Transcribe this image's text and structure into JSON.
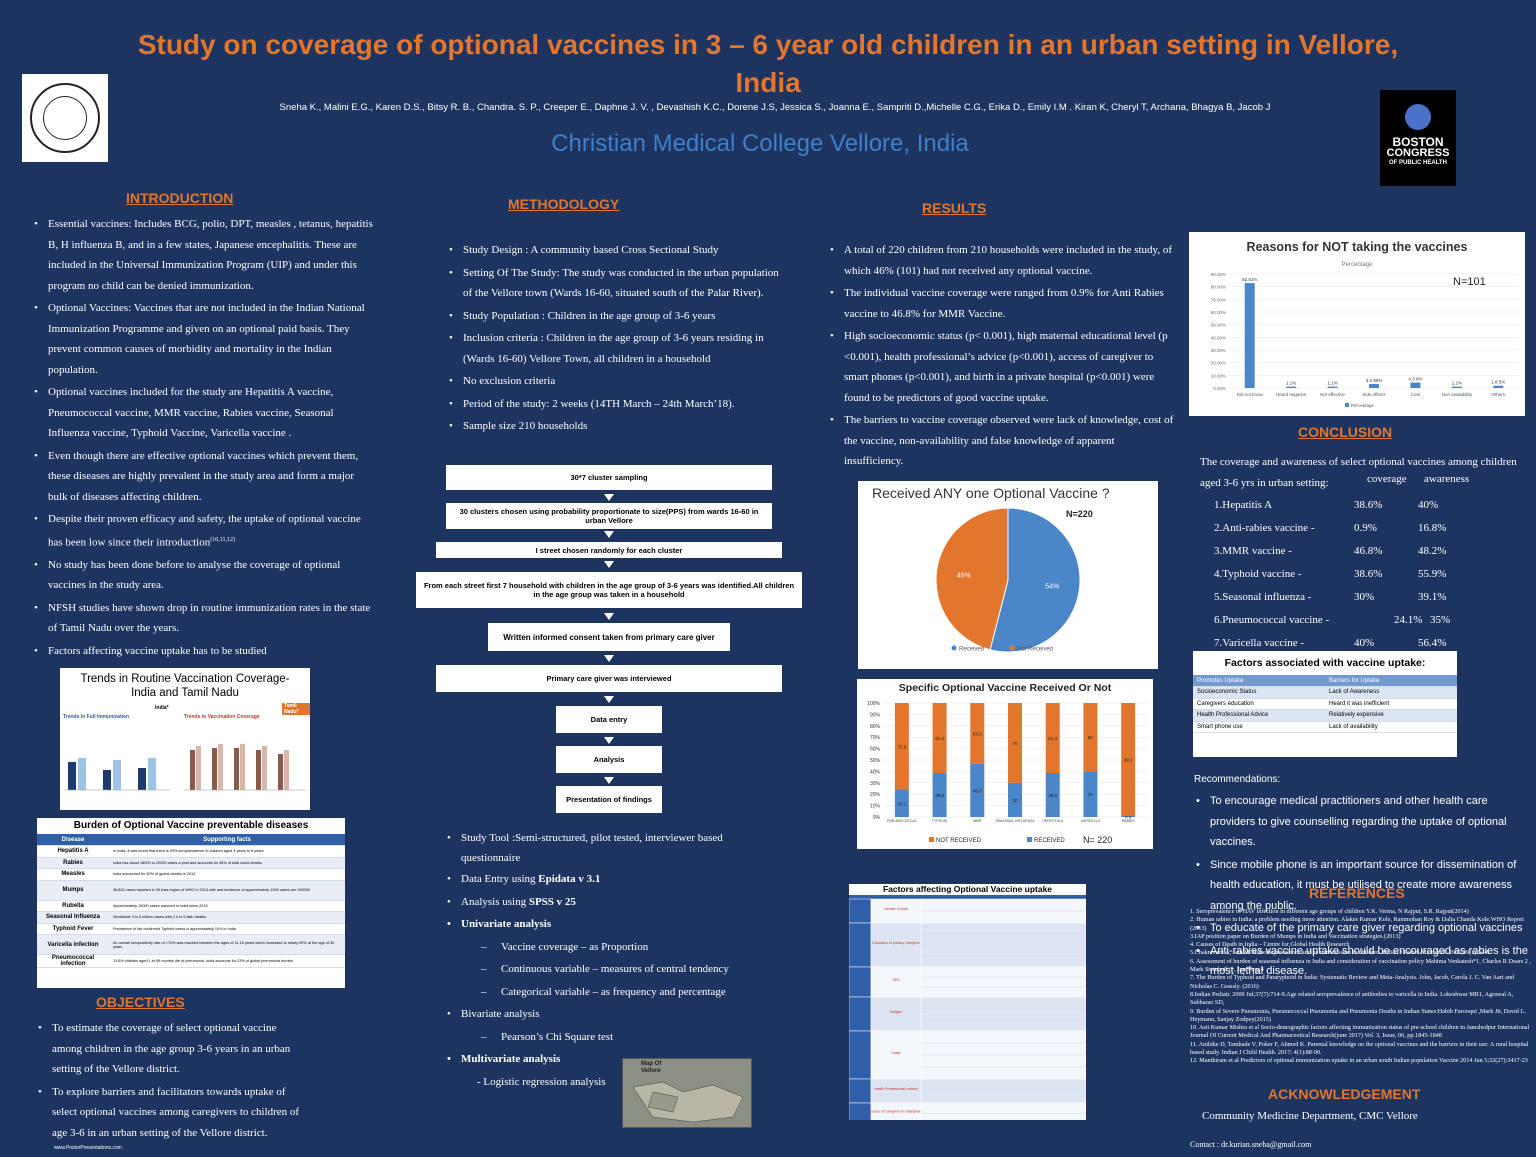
{
  "header": {
    "title_line1": "Study on coverage of optional vaccines in   3 – 6  year old children in an urban setting in   Vellore,",
    "title_line2": "India",
    "authors": "Sneha K., Malini E.G., Karen D.S., Bitsy R. B., Chandra. S. P., Creeper E., Daphne J. V. , Devashish K.C., Dorene J.S, Jessica S., Joanna E., Sampriti D.,Michelle C.G., Erika D.,  Emily I.M . Kiran K, Cheryl T, Archana, Bhagya B, Jacob J",
    "institution": "Christian Medical College Vellore, India",
    "right_logo": {
      "line1": "BOSTON",
      "line2": "CONGRESS",
      "line3": "OF PUBLIC HEALTH"
    }
  },
  "introduction": {
    "heading": "INTRODUCTION",
    "bullets": [
      "Essential  vaccines: Includes BCG, polio, DPT, measles , tetanus, hepatitis B,  H influenza B, and in a few states, Japanese encephalitis. These are included in the Universal Immunization Program (UIP) and under this program no child can be denied immunization.",
      "Optional Vaccines: Vaccines that are not included in the Indian National Immunization Programme and given on an optional paid basis. They prevent common causes of morbidity and mortality in the Indian population.",
      "Optional vaccines included for the study are Hepatitis A vaccine, Pneumococcal vaccine, MMR vaccine, Rabies vaccine,  Seasonal Influenza vaccine, Typhoid Vaccine, Varicella vaccine .",
      "Even though there are effective optional vaccines which prevent them, these diseases are highly prevalent in the study area and form a major bulk of diseases affecting children.",
      "Despite their proven efficacy and safety, the uptake of optional vaccine has been low since their introduction",
      "No study has been done before to analyse the coverage of optional vaccines in the study area.",
      "NFSH studies have shown drop in routine immunization rates in the state of Tamil Nadu over the years.",
      "Factors affecting vaccine uptake has to be studied"
    ],
    "citation": "(10,11,12)"
  },
  "trends_chart": {
    "title_line1": "Trends in Routine Vaccination Coverage-",
    "title_line2": "India and Tamil Nadu",
    "left_tag": "India*",
    "right_tag": "Tamil Nadu*",
    "left_sub": "Trends in Full Immunization",
    "right_sub": "Trends in Vaccination Coverage"
  },
  "burden_table": {
    "title": "Burden of Optional Vaccine preventable diseases",
    "head": [
      "Disease",
      "Supporting facts"
    ],
    "rows": [
      [
        "Hepatitis A",
        "In India, it was found that there is 93% seroprevalence in children aged 4 years to 8 years"
      ],
      [
        "Rabies",
        "India has about 18000 to 20000 cases a year and accounts for 36% of total world deaths"
      ],
      [
        "Measles",
        "India accounted for 50% of global deaths in 2013"
      ],
      [
        "Mumps",
        "36,832 cases reported in 30 Asia region of WHO in 2013 with and incidence of approximately 1000 cases per 100000"
      ],
      [
        "Rubella",
        "Approximately 19000 cases reported in India since 2013"
      ],
      [
        "Seasonal Influenza",
        "Worldwide 3 to 5 million cases with 2.5 to 5 lakh deaths"
      ],
      [
        "Typhoid Fever",
        "Prevalence of lab confirmed Typhoid cases is approximately 10% in India"
      ],
      [
        "Varicella infection",
        "An overall seropositivity rate of >70% was reached between the ages of 11-15 years which increased to nearly 90% at the age of 30 years"
      ],
      [
        "Pneumococcal infection",
        "13.6% children aged 1 to 59 months die of pneumonia. India accounts for 23% of global pneumonia burden"
      ]
    ]
  },
  "objectives": {
    "heading": "OBJECTIVES",
    "bullets": [
      "To estimate the coverage of select optional vaccine among children in the age group 3-6 years in an urban setting of the Vellore district.",
      "To explore barriers and facilitators towards uptake of select optional vaccines among caregivers to children of age 3-6  in an urban setting of the Vellore district."
    ]
  },
  "footer_left": "www.PosterPresentations.com",
  "methodology": {
    "heading": "METHODOLOGY",
    "bullets": [
      "Study Design : A community based Cross Sectional Study",
      "Setting Of The Study: The study was conducted in the urban population of the Vellore town (Wards 16-60, situated south of the Palar River).",
      "Study Population : Children in the age group of 3-6 years",
      "Inclusion criteria : Children in the age group of 3-6 years residing  in (Wards 16-60) Vellore Town, all children in a household",
      "No exclusion criteria",
      "Period of the study: 2 weeks (14TH March – 24th March’18).",
      "Sample size 210 households"
    ],
    "flow": [
      "30*7 cluster sampling",
      "30 clusters chosen using probability proportionate to size(PPS) from wards 16-60 in urban Vellore",
      "I street chosen randomly for each cluster",
      "From each street first 7 household with children in the age group of 3-6 years was identified.All children in the age group was taken in a household",
      "Written informed consent taken from primary care giver",
      "Primary care giver was interviewed",
      "Data entry",
      "Analysis",
      "Presentation of findings"
    ],
    "tools": {
      "tool": "Study Tool :Semi-structured, pilot tested, interviewer based questionnaire",
      "entry_a": "Data Entry using ",
      "entry_b": "Epidata v 3.1",
      "analysis_a": "Analysis using ",
      "analysis_b": "SPSS v 25",
      "univariate": "Univariate analysis",
      "uni_items": [
        "Vaccine coverage – as Proportion",
        "Continuous variable – measures of central tendency",
        "Categorical variable – as frequency and percentage"
      ],
      "bivariate": "Bivariate analysis",
      "bi_item": "Pearson’s Chi Square test",
      "multivariate": "Multivariate analysis",
      "multi_item": "- Logistic regression analysis"
    },
    "map_label": "Map Of Vellore"
  },
  "results": {
    "heading": "RESULTS",
    "bullets": [
      "A total of 220 children from 210 households were included in the study, of which 46% (101) had not received any optional vaccine.",
      "The individual vaccine coverage were ranged from 0.9% for Anti Rabies vaccine to 46.8% for MMR Vaccine.",
      "High socioeconomic status (p< 0.001), high maternal educational level (p <0.001), health professional’s advice (p<0.001), access of caregiver to smart phones (p<0.001), and birth in a private hospital (p<0.001) were found to be predictors of good vaccine uptake.",
      " The barriers to vaccine coverage observed were lack of knowledge, cost of the vaccine, non-availability and false knowledge of apparent insufficiency."
    ]
  },
  "chart_data": [
    {
      "type": "bar",
      "title": "Reasons for NOT taking the vaccines",
      "subtitle": "Percentage",
      "annotation": "N=101",
      "categories": [
        "Did not know",
        "Heard negative",
        "Not effective",
        "Side effects",
        "Cost",
        "Non availability",
        "Others"
      ],
      "values": [
        82.81,
        1.1,
        1.1,
        3.2,
        4.3,
        1.1,
        1.8
      ],
      "data_labels": [
        "82.81%",
        "1.1%",
        "1.1%",
        "3.2 90%",
        "4.3 0%",
        "1.1%",
        "1.8 5%"
      ],
      "ylim": [
        0,
        90
      ],
      "yticks": [
        "0.00%",
        "10.00%",
        "20.00%",
        "30.00%",
        "40.00%",
        "50.00%",
        "60.00%",
        "70.00%",
        "80.00%",
        "90.00%"
      ],
      "legend": "Percentage",
      "color": "#4a86c8"
    },
    {
      "type": "pie",
      "title": "Received ANY one Optional Vaccine ?",
      "annotation": "N=220",
      "labels": [
        "Received",
        "Not Received"
      ],
      "values": [
        54,
        46
      ],
      "data_labels": [
        "54%",
        "46%"
      ],
      "colors": [
        "#4a86c8",
        "#e2762c"
      ]
    },
    {
      "type": "bar",
      "stacked": true,
      "title": "Specific Optional Vaccine Received Or Not",
      "annotation": "N= 220",
      "categories": [
        "PNEUMOCOCCAL",
        "TYPHOID",
        "MMR",
        "SEASONAL INFLUENZA",
        "HEPATITIS A",
        "VARICELLA",
        "RABIES"
      ],
      "series": [
        {
          "name": "RECEIVED",
          "values": [
            24.1,
            38.6,
            46.8,
            30,
            38.6,
            40,
            0.9
          ],
          "labels": [
            "24.1",
            "38.6",
            "46.8",
            "30",
            "38.6",
            "40",
            "0.9"
          ],
          "color": "#4a86c8"
        },
        {
          "name": "NOT RECEIVED",
          "values": [
            75.9,
            61.4,
            53.2,
            70,
            61.4,
            60,
            99.1
          ],
          "labels": [
            "75.9",
            "61.4",
            "53.2",
            "70",
            "61.4",
            "60",
            "99.1"
          ],
          "color": "#e2762c"
        }
      ],
      "yticks": [
        "0%",
        "10%",
        "20%",
        "30%",
        "40%",
        "50%",
        "60%",
        "70%",
        "80%",
        "90%",
        "100%"
      ],
      "ylim": [
        0,
        100
      ]
    }
  ],
  "factors_table": {
    "title": "Factors affecting Optional Vaccine uptake",
    "groups": [
      "Gender of child",
      "Education of primary caregiver",
      "SES",
      "Religion",
      "Caste",
      "Health Professional's advice",
      "Access of Caregiver to smartphone"
    ]
  },
  "conclusion": {
    "heading": "CONCLUSION",
    "intro": "The coverage and awareness of select optional vaccines among children aged 3-6 yrs in urban setting:",
    "col_coverage": "coverage",
    "col_awareness": "awareness",
    "rows": [
      [
        "1.Hepatitis A",
        "38.6%",
        "40%"
      ],
      [
        "2.Anti-rabies vaccine -",
        "0.9%",
        "16.8%"
      ],
      [
        "3.MMR vaccine     -",
        "46.8%",
        "48.2%"
      ],
      [
        "4.Typhoid vaccine   -",
        "38.6%",
        "55.9%"
      ],
      [
        "5.Seasonal influenza -",
        "30%",
        "39.1%"
      ],
      [
        "6.Pneumococcal vaccine -",
        "24.1%",
        "35%"
      ],
      [
        "7.Varicella vaccine   -",
        "40%",
        "56.4%"
      ]
    ]
  },
  "factors_uptake": {
    "title": "Factors associated with vaccine uptake:",
    "head": [
      "Promotes Uptake",
      "Barriers for Uptake"
    ],
    "rows": [
      [
        "Socioeconomic Status",
        "Lack of Awareness"
      ],
      [
        "Caregivers education",
        "Heard it was inefficient"
      ],
      [
        "Health Professional Advice",
        "Relatively expensive"
      ],
      [
        "Smart phone use",
        "Lack of availability"
      ]
    ]
  },
  "recommendations": {
    "heading": "Recommendations:",
    "bullets": [
      "To encourage medical practitioners and other health care providers to give counselling regarding  the uptake of optional vaccines.",
      "Since mobile phone is an important source for dissemination of health education, it must be utilised to create more awareness among the public.",
      "To educate of the primary care giver regarding optional vaccines",
      "Anti-rabies vaccine uptake should be encouraged as rabies is the most lethal disease."
    ]
  },
  "references": {
    "heading": "REFERENCES",
    "items": [
      "1. Seroprevalence of HAV infection in different age groups of children Y.K. Verma, N Rajput, S.R. Rajput(2014)",
      "2. Human rabies in India: a problem needing more attention. Alakes Kumar Kole, Rammohan Roy & Dalia Chanda Kole.WHO Report (2013)",
      "3.IAP position paper on Burden of Mumps in India and Vaccination strategies.(2013)",
      "4. Causes of Death in India – Centre for Global Health Research",
      "5.Chakravarti A, Jain M. Rubella prevalence and its transmission in children. Indian J Pathol Microbiol. 2006;49(1):54-6",
      "6. Assessment of burden of seasonal influenza in India and consideration of vaccination policy Mahima Venkatesh*1,     Charles R Doars 2 , Mark Steinhoff 3 , Jun Ying 4",
      "7. The Burden of Typhoid and Paratyphoid in India: Systematic Review and Meta-Analysis. John, Jacob, Carola J. C. Van Aart and Nicholas C. Grassly. (2016)",
      "8.Indian Pediatr. 2000 Jul;37(7):714-9.Age related seroprevalence of antibodies to varicella in India. Lokeshwar MR1, Agrawal A, Subbarao SD,",
      "9. Burden of Severe Pneumonia, Pneumococcal Pneumonia and Pneumonia Deaths in Indian States:Habib Farooqui ,Mark Jit, David L. Heymann, Sanjay Zodpey(2015)",
      "10.  Asit Kumar Mishra et al Socio-demographic factors affecting immunization status of pre-school children in Jamshedpur  International Journal Of Current Medical And Pharmaceutical Research(june 2017) Vol. 3, Issue, 06, pp.1845-1848",
      "11. Anihike D, Tamhade V, Poker F, Ahmed K. Parental knowledge on the optional vaccines and the barriers in their use: A rural hospital based study. Indian J Child Health. 2017; 4(1):88-90.",
      "12. Manthiram et al Predictors of optional immunization uptake in an urban south Indian population Vaccine 2014 Jun 5;32(27):3417-23"
    ]
  },
  "acknowledgement": {
    "heading": "ACKNOWLEDGEMENT",
    "text": "Community Medicine Department, CMC Vellore",
    "contact": "Contact : dr.kurian.sneha@gmail.com"
  }
}
